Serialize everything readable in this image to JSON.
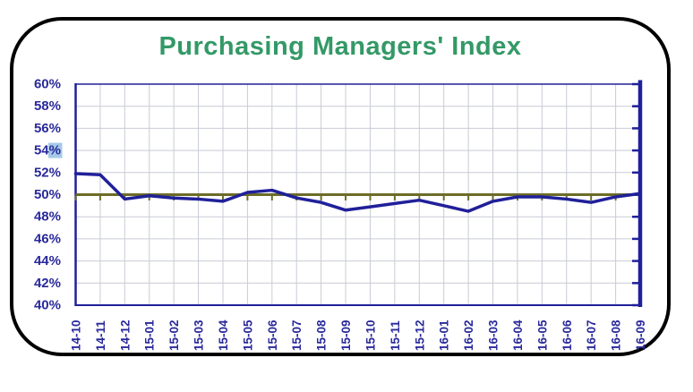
{
  "page": {
    "background": "#FFFFFF",
    "card_border_color": "#000000"
  },
  "chart_data": {
    "type": "line",
    "title": "Purchasing Managers' Index",
    "xlabel": "",
    "ylabel": "",
    "categories": [
      "14-10",
      "14-11",
      "14-12",
      "15-01",
      "15-02",
      "15-03",
      "15-04",
      "15-05",
      "15-06",
      "15-07",
      "15-08",
      "15-09",
      "15-10",
      "15-11",
      "15-12",
      "16-01",
      "16-02",
      "16-03",
      "16-04",
      "16-05",
      "16-06",
      "16-07",
      "16-08",
      "16-09"
    ],
    "series": [
      {
        "name": "Purchasing Managers' Index",
        "values": [
          51.9,
          51.8,
          49.6,
          49.9,
          49.7,
          49.6,
          49.4,
          50.2,
          50.4,
          49.7,
          49.3,
          48.6,
          48.9,
          49.2,
          49.5,
          49.0,
          48.5,
          49.4,
          49.8,
          49.8,
          49.6,
          49.3,
          49.8,
          50.1
        ]
      }
    ],
    "ylim": [
      40,
      60
    ],
    "ytick_step": 2,
    "ytick_labels": [
      "60%",
      "58%",
      "56%",
      "54%",
      "52%",
      "50%",
      "48%",
      "46%",
      "44%",
      "42%",
      "40%"
    ],
    "highlighted_ytick": "54%",
    "x_axis_cross_value": 50,
    "grid": true,
    "legend_position": "none",
    "colors": {
      "line": "#20209A",
      "axis": "#20209A",
      "tick_label": "#29299B",
      "x_axis_line": "#6C6C28",
      "grid": "#C9CCD6",
      "title": "#339966",
      "ytick_highlight": "#A6C9E8"
    }
  }
}
